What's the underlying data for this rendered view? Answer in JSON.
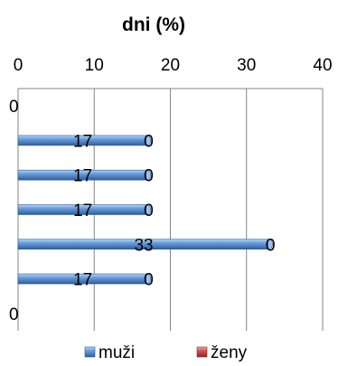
{
  "chart_data": {
    "type": "bar",
    "orientation": "horizontal",
    "title": "dni (%)",
    "xlim": [
      0,
      40
    ],
    "x_ticks": [
      "0",
      "10",
      "20",
      "30",
      "40"
    ],
    "grid": true,
    "legend_position": "bottom",
    "categories": [
      "",
      "",
      "",
      "",
      "",
      "",
      ""
    ],
    "series": [
      {
        "name": "muži",
        "values": [
          null,
          17,
          17,
          17,
          33,
          17,
          null
        ],
        "labels": [
          "0",
          "17",
          "17",
          "17",
          "33",
          "17",
          "0"
        ]
      },
      {
        "name": "ženy",
        "values": [
          null,
          0,
          0,
          0,
          0,
          0,
          null
        ],
        "labels": [
          "",
          "0",
          "0",
          "0",
          "0",
          "0",
          ""
        ]
      }
    ],
    "colors": {
      "muzi": "#4f81bd",
      "muzi_light": "#9cc2ef",
      "muzi_dark": "#2e5a8c",
      "zeny": "#c0504d",
      "axis": "#868686"
    }
  }
}
